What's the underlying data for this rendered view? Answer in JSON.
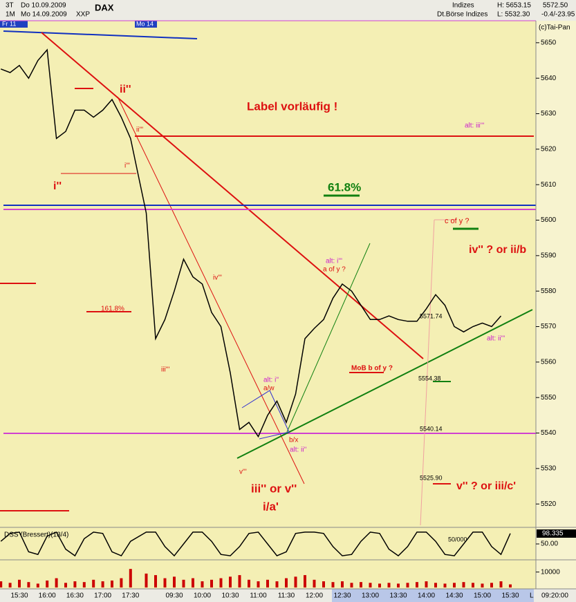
{
  "header": {
    "period1": "3T",
    "date1": "Do 10.09.2009",
    "symbol": "DAX",
    "period2": "1M",
    "date2": "Mo 14.09.2009",
    "exchange": "XXP",
    "group": "Indizes",
    "group2": "Dt.Börse Indizes",
    "high": "H: 5653.15",
    "low": "L: 5532.30",
    "last": "5572.50",
    "change": "-0.4/-23.95",
    "copyright": "(c)Tai-Pan",
    "day1": "Fr 11",
    "day2": "Mo 14",
    "axis_corner": "L",
    "clock": "09:20:00"
  },
  "chart_data": [
    {
      "type": "line",
      "color": "#000000",
      "categories": [
        null,
        null,
        "15:30",
        null,
        null,
        "16:00",
        null,
        null,
        "16:30",
        null,
        null,
        "17:00",
        null,
        null,
        "17:30",
        null,
        null,
        null,
        "09:30",
        null,
        null,
        "10:00",
        null,
        null,
        "10:30",
        null,
        null,
        "11:00",
        null,
        null,
        "11:30",
        null,
        null,
        "12:00",
        null,
        null,
        "12:30",
        null,
        null,
        "13:00",
        null,
        null,
        "13:30",
        null,
        null,
        "14:00",
        null,
        null,
        "14:30",
        null,
        null,
        "15:00",
        null,
        null,
        "15:30"
      ],
      "values": [
        5642.6,
        5641.6,
        5643.6,
        5640,
        5645,
        5648,
        5623,
        5625,
        5631,
        5631,
        5629,
        5631,
        5634,
        5629,
        5623,
        5602,
        5566.6,
        5572,
        5580,
        5589,
        5584,
        5582,
        5574,
        5570,
        5557,
        5541,
        5543,
        5539,
        5545,
        5549,
        5543,
        5551,
        5566.6,
        5569.5,
        5572,
        5578,
        5582,
        5580,
        5576,
        5572,
        5572,
        5573,
        5572,
        5571.5,
        5571.5,
        5575,
        5579,
        5576,
        5570,
        5568.5,
        5570,
        5571,
        5570,
        5573,
        null
      ],
      "ylim": [
        5514,
        5656.2
      ],
      "yticks": [
        5520,
        5530,
        5540,
        5550,
        5560,
        5570,
        5580,
        5590,
        5600,
        5610,
        5620,
        5630,
        5640,
        5650
      ]
    },
    {
      "type": "line",
      "title": "DSS (Bressert)(13/4)",
      "color": "#000000",
      "values": [
        60,
        90,
        95,
        20,
        10,
        80,
        95,
        30,
        5,
        70,
        95,
        90,
        20,
        5,
        60,
        95,
        95,
        40,
        5,
        50,
        95,
        95,
        60,
        10,
        5,
        40,
        90,
        95,
        50,
        5,
        20,
        90,
        95,
        95,
        90,
        40,
        5,
        10,
        60,
        95,
        90,
        30,
        5,
        40,
        95,
        95,
        60,
        10,
        5,
        50,
        95,
        95,
        40,
        10,
        90
      ],
      "ylim": [
        0,
        100
      ],
      "yticks": [
        {
          "value": 50,
          "label": "50.00"
        }
      ],
      "current_value": 98.335,
      "level_label": "50/000"
    },
    {
      "type": "bar",
      "color": "#cc0000",
      "values": [
        4000,
        3000,
        5000,
        3500,
        2500,
        4500,
        6000,
        3000,
        4000,
        3500,
        5000,
        4000,
        4500,
        6000,
        12000,
        9000,
        8000,
        6000,
        7000,
        5000,
        6000,
        4000,
        5000,
        6000,
        7000,
        8000,
        5000,
        4000,
        5000,
        4000,
        6000,
        7000,
        8000,
        5000,
        4000,
        3500,
        4000,
        3000,
        3500,
        3000,
        2500,
        3000,
        2500,
        3000,
        3500,
        4000,
        3000,
        2500,
        3000,
        3500,
        3000,
        2500,
        3000,
        4000,
        2000
      ],
      "ylim": [
        0,
        17000
      ],
      "yticks": [
        10000
      ]
    }
  ],
  "annotations": [
    "ii''",
    "ii'''",
    "i'''",
    "i''",
    "Label vorläufig !",
    "alt: iii'''",
    "61.8%",
    "c of y ?",
    "iv'' ? or ii/b",
    "iv'''",
    "alt: i'''",
    "a of y ?",
    "161.8%",
    "5571.74",
    "alt: ii'''",
    "MoB b of y ?",
    "iii'''",
    "5554.38",
    "alt: i''",
    "a/w",
    "5540.14",
    "b/x",
    "alt: ii''",
    "v'''",
    "5525.90",
    "iii'' or v''",
    "v'' ? or iii/c'",
    "i/a'"
  ]
}
